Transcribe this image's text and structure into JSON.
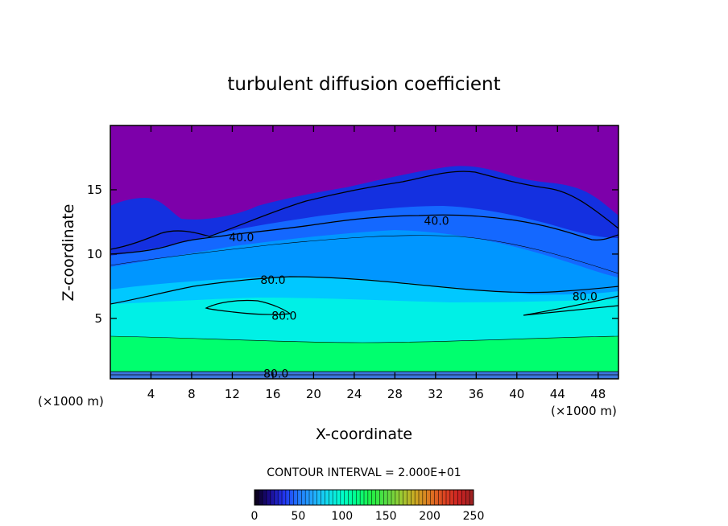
{
  "chart_data": {
    "type": "heatmap",
    "title": "turbulent diffusion coefficient",
    "xlabel": "X-coordinate",
    "ylabel": "Z-coordinate",
    "x_unit": "(×1000 m)",
    "z_unit": "(×1000 m)",
    "xlim": [
      0,
      50
    ],
    "ylim": [
      0.3,
      20
    ],
    "x_ticks": [
      4,
      8,
      12,
      16,
      20,
      24,
      28,
      32,
      36,
      40,
      44,
      48
    ],
    "y_ticks": [
      5,
      10,
      15
    ],
    "contour_interval_text": "CONTOUR INTERVAL = 2.000E+01",
    "contour_labels": [
      {
        "text": "40.0",
        "x": 12.9,
        "z": 11.3
      },
      {
        "text": "40.0",
        "x": 32.1,
        "z": 12.6
      },
      {
        "text": "80.0",
        "x": 16.0,
        "z": 8.0
      },
      {
        "text": "80.0",
        "x": 17.1,
        "z": 5.2
      },
      {
        "text": "80.0",
        "x": 46.7,
        "z": 6.7
      },
      {
        "text": "80.0",
        "x": 16.3,
        "z": 0.7
      }
    ],
    "colorbar": {
      "range": [
        0,
        250
      ],
      "tick_labels": [
        "0",
        "50",
        "100",
        "150",
        "200",
        "250"
      ],
      "colors": [
        "#0a0010",
        "#1a0a8a",
        "#2233ee",
        "#2277ff",
        "#22aaff",
        "#11ddee",
        "#00ffcc",
        "#00ff88",
        "#22ee44",
        "#55dd44",
        "#99cc33",
        "#ccaa22",
        "#dd7722",
        "#dd4422",
        "#cc2222",
        "#992222"
      ]
    },
    "field_colors": {
      "upper": "#7d00aa",
      "dark_blue": "#1430e0",
      "blue": "#1468ff",
      "light_blue": "#0096ff",
      "cyan_blue": "#00c8ff",
      "cyan": "#00f0e6",
      "green": "#00ff6e",
      "surface": "#3c78dc"
    }
  }
}
